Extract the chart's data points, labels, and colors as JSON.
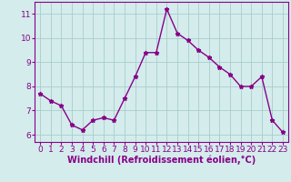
{
  "x": [
    0,
    1,
    2,
    3,
    4,
    5,
    6,
    7,
    8,
    9,
    10,
    11,
    12,
    13,
    14,
    15,
    16,
    17,
    18,
    19,
    20,
    21,
    22,
    23
  ],
  "y": [
    7.7,
    7.4,
    7.2,
    6.4,
    6.2,
    6.6,
    6.7,
    6.6,
    7.5,
    8.4,
    9.4,
    9.4,
    11.2,
    10.2,
    9.9,
    9.5,
    9.2,
    8.8,
    8.5,
    8.0,
    8.0,
    8.4,
    6.6,
    6.1
  ],
  "line_color": "#880088",
  "marker": "*",
  "marker_size": 3.5,
  "xlabel": "Windchill (Refroidissement éolien,°C)",
  "xlim": [
    -0.5,
    23.5
  ],
  "ylim": [
    5.7,
    11.5
  ],
  "yticks": [
    6,
    7,
    8,
    9,
    10,
    11
  ],
  "xticks": [
    0,
    1,
    2,
    3,
    4,
    5,
    6,
    7,
    8,
    9,
    10,
    11,
    12,
    13,
    14,
    15,
    16,
    17,
    18,
    19,
    20,
    21,
    22,
    23
  ],
  "bg_color": "#d4ecec",
  "grid_color": "#aacccc",
  "label_color": "#880088",
  "tick_color": "#880088",
  "axis_color": "#880088",
  "xlabel_fontsize": 7.0,
  "tick_fontsize": 6.5,
  "linewidth": 1.0
}
